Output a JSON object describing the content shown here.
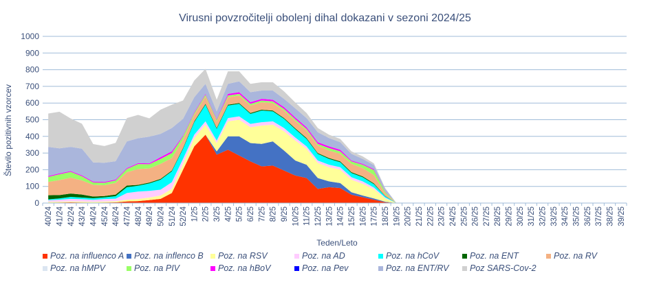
{
  "chart_data": {
    "type": "area",
    "stacked": true,
    "title": "Virusni povzročitelji  obolenj dihal dokazani v sezoni 2024/25",
    "xlabel": "Teden/Leto",
    "ylabel": "Število pozitivnih vzorcev",
    "ylim": [
      0,
      1000
    ],
    "yticks": [
      0,
      100,
      200,
      300,
      400,
      500,
      600,
      700,
      800,
      900,
      1000
    ],
    "grid": true,
    "legend_position": "bottom",
    "categories": [
      "40/24",
      "41/24",
      "42/24",
      "43/24",
      "44/24",
      "45/24",
      "46/24",
      "47/24",
      "48/24",
      "49/24",
      "50/24",
      "51/24",
      "52/24",
      "1/25",
      "2/25",
      "3/25",
      "4/25",
      "5/25",
      "6/25",
      "7/25",
      "8/25",
      "9/25",
      "10/25",
      "11/25",
      "12/25",
      "13/25",
      "14/25",
      "15/25",
      "16/25",
      "17/25",
      "18/25",
      "19/25",
      "20/25",
      "21/25",
      "22/25",
      "23/25",
      "24/25",
      "25/25",
      "26/25",
      "27/25",
      "28/25",
      "29/25",
      "30/25",
      "31/25",
      "32/25",
      "33/25",
      "34/25",
      "35/25",
      "36/25",
      "37/25",
      "38/25",
      "39/25"
    ],
    "series": [
      {
        "name": "Poz. na influenco A",
        "color": "#ff3300",
        "values": [
          2,
          3,
          4,
          3,
          2,
          3,
          4,
          10,
          12,
          18,
          25,
          60,
          200,
          340,
          410,
          290,
          320,
          285,
          250,
          220,
          225,
          195,
          165,
          150,
          85,
          95,
          90,
          50,
          35,
          20,
          5,
          0,
          0,
          0,
          0,
          0,
          0,
          0,
          0,
          0,
          0,
          0,
          0,
          0,
          0,
          0,
          0,
          0,
          0,
          0,
          0,
          0
        ]
      },
      {
        "name": "Poz. na inflenco B",
        "color": "#4472c4",
        "values": [
          0,
          0,
          0,
          0,
          0,
          0,
          0,
          0,
          0,
          0,
          0,
          0,
          0,
          0,
          0,
          20,
          80,
          115,
          110,
          135,
          145,
          120,
          90,
          80,
          65,
          35,
          30,
          15,
          10,
          8,
          3,
          0,
          0,
          0,
          0,
          0,
          0,
          0,
          0,
          0,
          0,
          0,
          0,
          0,
          0,
          0,
          0,
          0,
          0,
          0,
          0,
          0
        ]
      },
      {
        "name": "Poz. na RSV",
        "color": "#ffff99",
        "values": [
          5,
          5,
          6,
          6,
          5,
          6,
          7,
          10,
          12,
          15,
          20,
          25,
          35,
          50,
          60,
          50,
          90,
          100,
          95,
          110,
          100,
          115,
          120,
          95,
          90,
          85,
          80,
          75,
          70,
          55,
          20,
          0,
          0,
          0,
          0,
          0,
          0,
          0,
          0,
          0,
          0,
          0,
          0,
          0,
          0,
          0,
          0,
          0,
          0,
          0,
          0,
          0
        ]
      },
      {
        "name": "Poz. na AD",
        "color": "#ffccff",
        "values": [
          10,
          12,
          15,
          14,
          12,
          15,
          15,
          40,
          45,
          40,
          35,
          40,
          30,
          20,
          20,
          15,
          20,
          20,
          20,
          20,
          20,
          20,
          18,
          15,
          15,
          15,
          15,
          15,
          15,
          10,
          5,
          0,
          0,
          0,
          0,
          0,
          0,
          0,
          0,
          0,
          0,
          0,
          0,
          0,
          0,
          0,
          0,
          0,
          0,
          0,
          0,
          0
        ]
      },
      {
        "name": "Poz. na hCoV",
        "color": "#00ffff",
        "values": [
          5,
          8,
          12,
          10,
          10,
          10,
          15,
          35,
          35,
          45,
          60,
          65,
          60,
          75,
          100,
          70,
          75,
          75,
          60,
          70,
          60,
          55,
          50,
          45,
          40,
          35,
          30,
          25,
          25,
          20,
          8,
          0,
          0,
          0,
          0,
          0,
          0,
          0,
          0,
          0,
          0,
          0,
          0,
          0,
          0,
          0,
          0,
          0,
          0,
          0,
          0,
          0
        ]
      },
      {
        "name": "Poz. na ENT",
        "color": "#006600",
        "values": [
          25,
          20,
          20,
          18,
          10,
          8,
          10,
          10,
          5,
          5,
          5,
          5,
          5,
          5,
          5,
          5,
          5,
          5,
          5,
          5,
          5,
          5,
          5,
          5,
          5,
          5,
          5,
          5,
          5,
          5,
          2,
          0,
          0,
          0,
          0,
          0,
          0,
          0,
          0,
          0,
          0,
          0,
          0,
          0,
          0,
          0,
          0,
          0,
          0,
          0,
          0,
          0
        ]
      },
      {
        "name": "Poz. na RV",
        "color": "#f4b183",
        "values": [
          80,
          90,
          95,
          85,
          70,
          65,
          70,
          80,
          95,
          85,
          90,
          75,
          50,
          40,
          45,
          40,
          45,
          45,
          45,
          45,
          45,
          45,
          45,
          45,
          45,
          45,
          45,
          50,
          50,
          50,
          15,
          0,
          0,
          0,
          0,
          0,
          0,
          0,
          0,
          0,
          0,
          0,
          0,
          0,
          0,
          0,
          0,
          0,
          0,
          0,
          0,
          0
        ]
      },
      {
        "name": "Poz. na hMPV",
        "color": "#dbe5f1",
        "values": [
          0,
          0,
          0,
          0,
          0,
          0,
          0,
          0,
          0,
          0,
          0,
          0,
          0,
          0,
          0,
          0,
          0,
          0,
          0,
          0,
          0,
          0,
          0,
          0,
          0,
          0,
          0,
          0,
          0,
          0,
          0,
          0,
          0,
          0,
          0,
          0,
          0,
          0,
          0,
          0,
          0,
          0,
          0,
          0,
          0,
          0,
          0,
          0,
          0,
          0,
          0,
          0
        ]
      },
      {
        "name": "Poz. na PIV",
        "color": "#99ff66",
        "values": [
          30,
          35,
          35,
          25,
          15,
          15,
          15,
          20,
          30,
          25,
          30,
          30,
          20,
          10,
          10,
          10,
          10,
          10,
          10,
          10,
          10,
          10,
          10,
          10,
          10,
          15,
          15,
          15,
          20,
          30,
          10,
          0,
          0,
          0,
          0,
          0,
          0,
          0,
          0,
          0,
          0,
          0,
          0,
          0,
          0,
          0,
          0,
          0,
          0,
          0,
          0,
          0
        ]
      },
      {
        "name": "Poz. na hBoV",
        "color": "#ff00ff",
        "values": [
          5,
          5,
          5,
          5,
          5,
          5,
          5,
          5,
          5,
          5,
          10,
          10,
          5,
          5,
          5,
          5,
          10,
          10,
          10,
          10,
          10,
          10,
          10,
          10,
          10,
          10,
          10,
          5,
          5,
          5,
          2,
          0,
          0,
          0,
          0,
          0,
          0,
          0,
          0,
          0,
          0,
          0,
          0,
          0,
          0,
          0,
          0,
          0,
          0,
          0,
          0,
          0
        ]
      },
      {
        "name": "Poz. na Pev",
        "color": "#0000ff",
        "values": [
          0,
          0,
          0,
          0,
          0,
          0,
          0,
          0,
          0,
          0,
          0,
          0,
          0,
          0,
          0,
          0,
          0,
          0,
          0,
          0,
          0,
          0,
          0,
          0,
          0,
          0,
          0,
          0,
          0,
          0,
          0,
          0,
          0,
          0,
          0,
          0,
          0,
          0,
          0,
          0,
          0,
          0,
          0,
          0,
          0,
          0,
          0,
          0,
          0,
          0,
          0,
          0
        ]
      },
      {
        "name": "Poz. na ENT/RV",
        "color": "#aab6dc",
        "values": [
          175,
          150,
          145,
          160,
          115,
          115,
          110,
          160,
          150,
          160,
          140,
          140,
          100,
          90,
          60,
          45,
          60,
          65,
          60,
          50,
          55,
          50,
          55,
          55,
          60,
          50,
          45,
          40,
          30,
          25,
          15,
          0,
          0,
          0,
          0,
          0,
          0,
          0,
          0,
          0,
          0,
          0,
          0,
          0,
          0,
          0,
          0,
          0,
          0,
          0,
          0,
          0
        ]
      },
      {
        "name": "Poz  SARS-Cov-2",
        "color": "#d0d0d0",
        "values": [
          200,
          220,
          170,
          150,
          110,
          100,
          110,
          140,
          140,
          110,
          145,
          140,
          110,
          100,
          90,
          70,
          75,
          60,
          50,
          50,
          50,
          45,
          35,
          30,
          25,
          20,
          20,
          15,
          15,
          10,
          5,
          0,
          0,
          0,
          0,
          0,
          0,
          0,
          0,
          0,
          0,
          0,
          0,
          0,
          0,
          0,
          0,
          0,
          0,
          0,
          0,
          0
        ]
      }
    ]
  }
}
